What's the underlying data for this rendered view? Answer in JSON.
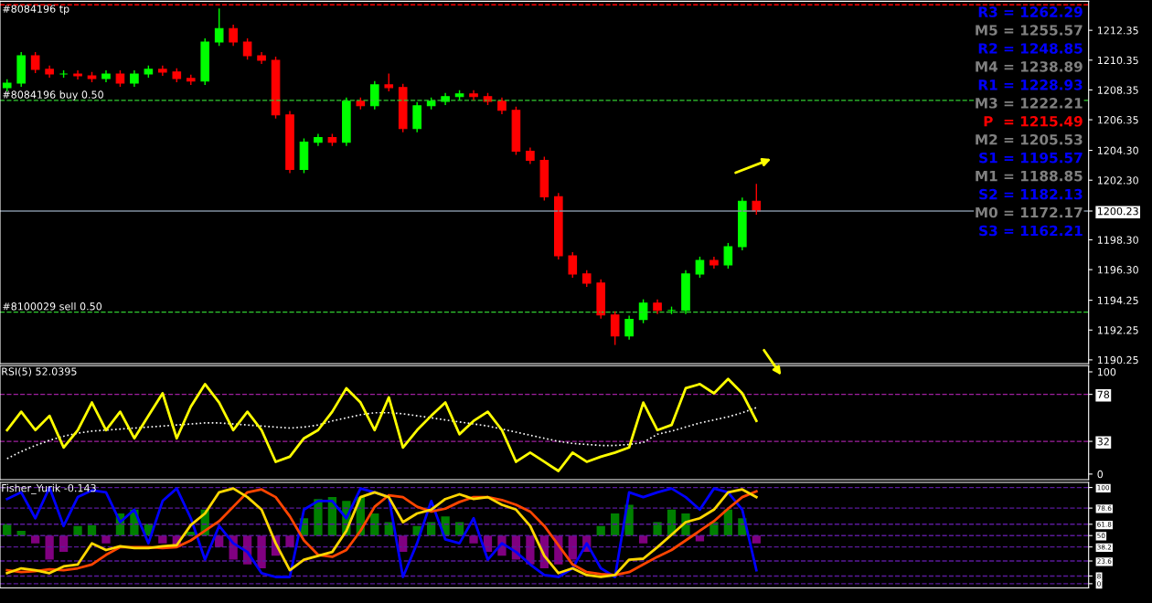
{
  "chart_data": [
    {
      "type": "candlestick",
      "tick_labels": "y",
      "grid": false,
      "categories": [
        null,
        null,
        null,
        null,
        null,
        null,
        null,
        null,
        null,
        null,
        null,
        null,
        null,
        null,
        null,
        null,
        null,
        null,
        null,
        null,
        null,
        null,
        null,
        null,
        null,
        null,
        null,
        null,
        null,
        null,
        null,
        null,
        null,
        null,
        null,
        null,
        null,
        null,
        null,
        null,
        null,
        null,
        null,
        null,
        null,
        null,
        null,
        null,
        null,
        null,
        null,
        null,
        null,
        null,
        null,
        null,
        null,
        null,
        null,
        null,
        null,
        null,
        null,
        null,
        null,
        null,
        null,
        null,
        null,
        null,
        null,
        null,
        null,
        null,
        null,
        null,
        null
      ],
      "ohlc": [
        [
          1208.5,
          1209.06,
          1208.25,
          1208.81
        ],
        [
          1208.81,
          1210.89,
          1208.56,
          1210.64
        ],
        [
          1210.64,
          1210.89,
          1209.48,
          1209.73
        ],
        [
          1209.73,
          1209.98,
          1209.17,
          1209.42
        ],
        [
          1209.42,
          1209.67,
          1209.17,
          1209.42
        ],
        [
          1209.42,
          1209.67,
          1209.05,
          1209.3
        ],
        [
          1209.3,
          1209.55,
          1208.87,
          1209.12
        ],
        [
          1209.12,
          1209.67,
          1208.87,
          1209.42
        ],
        [
          1209.42,
          1209.67,
          1208.56,
          1208.81
        ],
        [
          1208.81,
          1209.67,
          1208.56,
          1209.42
        ],
        [
          1209.42,
          1209.98,
          1209.17,
          1209.73
        ],
        [
          1209.73,
          1209.98,
          1209.3,
          1209.55
        ],
        [
          1209.55,
          1209.8,
          1208.87,
          1209.12
        ],
        [
          1209.12,
          1209.37,
          1208.69,
          1208.94
        ],
        [
          1208.94,
          1211.81,
          1208.69,
          1211.56
        ],
        [
          1211.56,
          1213.81,
          1211.31,
          1212.47
        ],
        [
          1212.47,
          1212.72,
          1211.31,
          1211.56
        ],
        [
          1211.56,
          1211.81,
          1210.39,
          1210.64
        ],
        [
          1210.64,
          1210.89,
          1210.09,
          1210.34
        ],
        [
          1210.34,
          1210.59,
          1206.43,
          1206.68
        ],
        [
          1206.68,
          1206.93,
          1202.77,
          1203.02
        ],
        [
          1203.02,
          1205.1,
          1202.77,
          1204.85
        ],
        [
          1204.85,
          1205.4,
          1204.6,
          1205.15
        ],
        [
          1205.15,
          1205.4,
          1204.6,
          1204.85
        ],
        [
          1204.85,
          1207.84,
          1204.6,
          1207.59
        ],
        [
          1207.59,
          1207.84,
          1207.04,
          1207.29
        ],
        [
          1207.29,
          1208.94,
          1207.04,
          1208.69
        ],
        [
          1208.69,
          1209.45,
          1208.26,
          1208.51
        ],
        [
          1208.51,
          1208.76,
          1205.51,
          1205.76
        ],
        [
          1205.76,
          1207.54,
          1205.51,
          1207.29
        ],
        [
          1207.29,
          1207.84,
          1207.04,
          1207.59
        ],
        [
          1207.59,
          1208.15,
          1207.34,
          1207.9
        ],
        [
          1207.9,
          1208.33,
          1207.65,
          1208.08
        ],
        [
          1208.08,
          1208.33,
          1207.65,
          1207.9
        ],
        [
          1207.9,
          1208.15,
          1207.34,
          1207.59
        ],
        [
          1207.59,
          1207.84,
          1206.73,
          1206.98
        ],
        [
          1206.98,
          1207.23,
          1203.99,
          1204.24
        ],
        [
          1204.24,
          1204.49,
          1203.38,
          1203.63
        ],
        [
          1203.63,
          1203.88,
          1200.94,
          1201.19
        ],
        [
          1201.19,
          1201.44,
          1196.98,
          1197.23
        ],
        [
          1197.23,
          1197.48,
          1195.76,
          1196.01
        ],
        [
          1196.01,
          1196.26,
          1195.15,
          1195.4
        ],
        [
          1195.4,
          1195.65,
          1193.01,
          1193.26
        ],
        [
          1193.26,
          1193.51,
          1191.25,
          1191.86
        ],
        [
          1191.86,
          1193.21,
          1191.61,
          1192.96
        ],
        [
          1192.96,
          1194.31,
          1192.71,
          1194.06
        ],
        [
          1194.06,
          1194.31,
          1193.32,
          1193.57
        ],
        [
          1193.57,
          1193.82,
          1193.32,
          1193.57
        ],
        [
          1193.57,
          1196.26,
          1193.32,
          1196.01
        ],
        [
          1196.01,
          1197.17,
          1195.76,
          1196.92
        ],
        [
          1196.92,
          1197.17,
          1196.37,
          1196.62
        ],
        [
          1196.62,
          1198.09,
          1196.37,
          1197.84
        ],
        [
          1197.84,
          1201.14,
          1197.59,
          1200.89
        ],
        [
          1200.89,
          1202.05,
          1199.98,
          1200.23
        ],
        null,
        null,
        null,
        null,
        null,
        null,
        null,
        null,
        null,
        null,
        null,
        null,
        null,
        null,
        null,
        null,
        null,
        null,
        null,
        null,
        null,
        null,
        null
      ],
      "colors": [
        "#00ff00",
        "#00ff00",
        "#ff0000",
        "#ff0000",
        "#00ff00",
        "#ff0000",
        "#ff0000",
        "#00ff00",
        "#ff0000",
        "#00ff00",
        "#00ff00",
        "#ff0000",
        "#ff0000",
        "#ff0000",
        "#00ff00",
        "#00ff00",
        "#ff0000",
        "#ff0000",
        "#ff0000",
        "#ff0000",
        "#ff0000",
        "#00ff00",
        "#00ff00",
        "#ff0000",
        "#00ff00",
        "#ff0000",
        "#00ff00",
        "#ff0000",
        "#ff0000",
        "#00ff00",
        "#00ff00",
        "#00ff00",
        "#00ff00",
        "#ff0000",
        "#ff0000",
        "#ff0000",
        "#ff0000",
        "#ff0000",
        "#ff0000",
        "#ff0000",
        "#ff0000",
        "#ff0000",
        "#ff0000",
        "#ff0000",
        "#00ff00",
        "#00ff00",
        "#ff0000",
        "#00ff00",
        "#00ff00",
        "#00ff00",
        "#ff0000",
        "#00ff00",
        "#00ff00",
        "#ff0000",
        null,
        null,
        null,
        null,
        null,
        null,
        null,
        null,
        null,
        null,
        null,
        null,
        null,
        null,
        null,
        null,
        null,
        null,
        null,
        null,
        null,
        null,
        null
      ],
      "ylim": [
        1190.0,
        1214.3
      ],
      "yticks": [
        {
          "value": 1212.35,
          "label": "1212.35"
        },
        {
          "value": 1210.35,
          "label": "1210.35"
        },
        {
          "value": 1208.35,
          "label": "1208.35"
        },
        {
          "value": 1206.35,
          "label": "1206.35"
        },
        {
          "value": 1204.3,
          "label": "1204.30"
        },
        {
          "value": 1202.3,
          "label": "1202.30"
        },
        {
          "value": 1200.23,
          "label": "1200.23"
        },
        {
          "value": 1198.3,
          "label": "1198.30"
        },
        {
          "value": 1196.3,
          "label": "1196.30"
        },
        {
          "value": 1194.25,
          "label": "1194.25"
        },
        {
          "value": 1192.25,
          "label": "1192.25"
        },
        {
          "value": 1190.25,
          "label": "1190.25"
        }
      ],
      "ref_lines": [
        {
          "axis": "y",
          "value": 1214.06,
          "label": "#8084196 tp",
          "color": "#ff0000",
          "line_style": "dashed"
        },
        {
          "axis": "y",
          "value": 1207.65,
          "label": "#8084196 buy 0.50",
          "color": "#32cd32",
          "line_style": "dashed"
        },
        {
          "axis": "y",
          "value": 1193.45,
          "label": "#8100029 sell 0.50",
          "color": "#32cd32",
          "line_style": "dashed"
        },
        {
          "axis": "y",
          "value": 1200.23,
          "color": "#8090a0",
          "line_style": "solid"
        }
      ],
      "annotations": [
        "R3 = 1262.29",
        "M5 = 1255.57",
        "R2 = 1248.85",
        "M4 = 1238.89",
        "R1 = 1228.93",
        "M3 = 1222.21",
        "P  = 1215.49",
        "M2 = 1205.53",
        "S1 = 1195.57",
        "M1 = 1188.85",
        "S2 = 1182.13",
        "M0 = 1172.17",
        "S3 = 1162.21"
      ]
    },
    {
      "type": "line",
      "tick_labels": "y",
      "grid": false,
      "categories": [
        null,
        null,
        null,
        null,
        null,
        null,
        null,
        null,
        null,
        null,
        null,
        null,
        null,
        null,
        null,
        null,
        null,
        null,
        null,
        null,
        null,
        null,
        null,
        null,
        null,
        null,
        null,
        null,
        null,
        null,
        null,
        null,
        null,
        null,
        null,
        null,
        null,
        null,
        null,
        null,
        null,
        null,
        null,
        null,
        null,
        null,
        null,
        null,
        null,
        null,
        null,
        null,
        null,
        null,
        null,
        null,
        null,
        null,
        null,
        null,
        null,
        null,
        null,
        null,
        null,
        null,
        null,
        null,
        null,
        null,
        null,
        null,
        null,
        null,
        null,
        null,
        null
      ],
      "ylim": [
        -5.5,
        106
      ],
      "yticks": [
        0,
        32,
        78,
        100
      ],
      "ref_lines": [
        {
          "axis": "y",
          "value": 78,
          "color": "#a020a0",
          "line_style": "dashed"
        },
        {
          "axis": "y",
          "value": 32,
          "color": "#a020a0",
          "line_style": "dashed"
        }
      ],
      "annotations": [
        "RSI(5) 52.0395"
      ],
      "series": [
        {
          "type": "line",
          "line_style": "dotted",
          "color": "#ffffff",
          "values": [
            15,
            22,
            28,
            33,
            37,
            40,
            42,
            43,
            44,
            45,
            46,
            47,
            48,
            49,
            50,
            50,
            49,
            48,
            47,
            46,
            45,
            46,
            48,
            52,
            55,
            58,
            60,
            60,
            59,
            57,
            55,
            53,
            51,
            49,
            47,
            44,
            41,
            38,
            35,
            32,
            30,
            29,
            28,
            28,
            29,
            31,
            39,
            42,
            46,
            50,
            53,
            56,
            60,
            65,
            null,
            null,
            null,
            null,
            null,
            null,
            null,
            null,
            null,
            null,
            null,
            null,
            null,
            null,
            null,
            null,
            null,
            null,
            null,
            null,
            null,
            null,
            null
          ]
        },
        {
          "type": "line",
          "line_style": "solid",
          "color": "#ffff00",
          "values": [
            43,
            61,
            43,
            57,
            26,
            43,
            70,
            43,
            61,
            35,
            57,
            79,
            35,
            66,
            88,
            70,
            43,
            61,
            43,
            12,
            17,
            35,
            43,
            61,
            84,
            70,
            43,
            75,
            26,
            43,
            57,
            70,
            39,
            52,
            61,
            43,
            12,
            21,
            12,
            3,
            21,
            12,
            17,
            21,
            26,
            70,
            43,
            48,
            84,
            88,
            79,
            93,
            79,
            52,
            null,
            null,
            null,
            null,
            null,
            null,
            null,
            null,
            null,
            null,
            null,
            null,
            null,
            null,
            null,
            null,
            null,
            null,
            null,
            null,
            null,
            null,
            null
          ]
        }
      ]
    },
    {
      "type": "line",
      "tick_labels": "y",
      "grid": false,
      "categories": [
        null,
        null,
        null,
        null,
        null,
        null,
        null,
        null,
        null,
        null,
        null,
        null,
        null,
        null,
        null,
        null,
        null,
        null,
        null,
        null,
        null,
        null,
        null,
        null,
        null,
        null,
        null,
        null,
        null,
        null,
        null,
        null,
        null,
        null,
        null,
        null,
        null,
        null,
        null,
        null,
        null,
        null,
        null,
        null,
        null,
        null,
        null,
        null,
        null,
        null,
        null,
        null,
        null,
        null,
        null,
        null,
        null,
        null,
        null,
        null,
        null,
        null,
        null,
        null,
        null,
        null,
        null,
        null,
        null,
        null,
        null,
        null,
        null,
        null,
        null,
        null,
        null
      ],
      "ylim": [
        -4.4,
        105.3
      ],
      "yticks": [
        0,
        8,
        23.6,
        38.2,
        50,
        61.8,
        78.6,
        100
      ],
      "ref_lines": [
        {
          "axis": "y",
          "value": 100,
          "color": "#5a1a9a",
          "line_style": "dashed"
        },
        {
          "axis": "y",
          "value": 78.6,
          "color": "#5a1a9a",
          "line_style": "dashed"
        },
        {
          "axis": "y",
          "value": 61.8,
          "color": "#5a1a9a",
          "line_style": "dashed"
        },
        {
          "axis": "y",
          "value": 50,
          "color": "#5a1a9a",
          "line_style": "dashed"
        },
        {
          "axis": "y",
          "value": 38.2,
          "color": "#5a1a9a",
          "line_style": "dashed"
        },
        {
          "axis": "y",
          "value": 23.6,
          "color": "#5a1a9a",
          "line_style": "dashed"
        },
        {
          "axis": "y",
          "value": 8,
          "color": "#5a1a9a",
          "line_style": "dashed"
        },
        {
          "axis": "y",
          "value": 0,
          "color": "#5a1a9a",
          "line_style": "dashed"
        }
      ],
      "annotations": [
        "Fisher_Yurik -0.143"
      ],
      "series": [
        {
          "type": "bar",
          "base": [
            50,
            50,
            50,
            50,
            50,
            50,
            50,
            50,
            50,
            50,
            50,
            50,
            50,
            50,
            50,
            50,
            50,
            50,
            50,
            50,
            50,
            50,
            50,
            50,
            50,
            50,
            50,
            50,
            50,
            50,
            50,
            50,
            50,
            50,
            50,
            50,
            50,
            50,
            50,
            50,
            50,
            50,
            50,
            50,
            50,
            50,
            50,
            50,
            50,
            50,
            50,
            50,
            50,
            50,
            null,
            null,
            null,
            null,
            null,
            null,
            null,
            null,
            null,
            null,
            null,
            null,
            null,
            null,
            null,
            null,
            null,
            null,
            null,
            null,
            null,
            null,
            null
          ],
          "values": [
            12,
            5,
            -8,
            -25,
            -17,
            10,
            11,
            -8,
            23,
            27,
            12,
            -8,
            -12,
            4,
            27,
            -12,
            -25,
            -30,
            -34,
            -21,
            -12,
            18,
            38,
            40,
            36,
            40,
            23,
            14,
            -17,
            10,
            14,
            20,
            14,
            -8,
            -17,
            -21,
            -25,
            -30,
            -34,
            -30,
            -25,
            -17,
            10,
            23,
            32,
            -8,
            14,
            27,
            23,
            -6,
            14,
            27,
            18,
            -8,
            null,
            null,
            null,
            null,
            null,
            null,
            null,
            null,
            null,
            null,
            null,
            null,
            null,
            null,
            null,
            null,
            null,
            null,
            null,
            null,
            null,
            null,
            null
          ],
          "colors": [
            "#008000",
            "#008000",
            "#800080",
            "#800080",
            "#800080",
            "#008000",
            "#008000",
            "#800080",
            "#008000",
            "#008000",
            "#008000",
            "#800080",
            "#800080",
            "#008000",
            "#008000",
            "#800080",
            "#800080",
            "#800080",
            "#800080",
            "#800080",
            "#800080",
            "#008000",
            "#008000",
            "#008000",
            "#008000",
            "#008000",
            "#008000",
            "#008000",
            "#800080",
            "#008000",
            "#008000",
            "#008000",
            "#008000",
            "#800080",
            "#800080",
            "#800080",
            "#800080",
            "#800080",
            "#800080",
            "#800080",
            "#800080",
            "#800080",
            "#008000",
            "#008000",
            "#008000",
            "#800080",
            "#008000",
            "#008000",
            "#008000",
            "#800080",
            "#008000",
            "#008000",
            "#008000",
            "#800080",
            null,
            null,
            null,
            null,
            null,
            null,
            null,
            null,
            null,
            null,
            null,
            null,
            null,
            null,
            null,
            null,
            null,
            null,
            null,
            null,
            null,
            null,
            null
          ]
        },
        {
          "type": "line",
          "line_style": "solid",
          "color": "#0000ff",
          "values": [
            88,
            95,
            68,
            100,
            60,
            90,
            97,
            95,
            64,
            77,
            42,
            86,
            99,
            68,
            25,
            60,
            42,
            33,
            11,
            7,
            7,
            77,
            86,
            86,
            68,
            99,
            95,
            90,
            7,
            42,
            86,
            46,
            42,
            68,
            25,
            42,
            33,
            20,
            9,
            7,
            16,
            42,
            16,
            7,
            95,
            90,
            95,
            99,
            90,
            77,
            99,
            95,
            77,
            14,
            null,
            null,
            null,
            null,
            null,
            null,
            null,
            null,
            null,
            null,
            null,
            null,
            null,
            null,
            null,
            null,
            null,
            null,
            null,
            null,
            null,
            null,
            null
          ]
        },
        {
          "type": "line",
          "line_style": "solid",
          "color": "#ff4500",
          "values": [
            14,
            12,
            13,
            15,
            14,
            16,
            20,
            30,
            38,
            38,
            38,
            37,
            38,
            45,
            55,
            65,
            80,
            95,
            98,
            90,
            70,
            45,
            30,
            28,
            35,
            55,
            80,
            92,
            90,
            80,
            75,
            78,
            85,
            90,
            90,
            87,
            82,
            75,
            60,
            40,
            20,
            12,
            10,
            9,
            12,
            20,
            28,
            35,
            45,
            55,
            65,
            78,
            90,
            96,
            null,
            null,
            null,
            null,
            null,
            null,
            null,
            null,
            null,
            null,
            null,
            null,
            null,
            null,
            null,
            null,
            null,
            null,
            null,
            null,
            null,
            null,
            null
          ]
        },
        {
          "type": "line",
          "line_style": "solid",
          "color": "#ffd700",
          "values": [
            11,
            16,
            14,
            11,
            18,
            20,
            42,
            35,
            39,
            37,
            37,
            39,
            40,
            61,
            73,
            95,
            99,
            90,
            77,
            42,
            14,
            25,
            29,
            33,
            55,
            90,
            95,
            90,
            64,
            73,
            77,
            88,
            93,
            88,
            90,
            82,
            77,
            60,
            29,
            11,
            16,
            9,
            7,
            9,
            25,
            26,
            38,
            51,
            64,
            68,
            77,
            95,
            98,
            90,
            null,
            null,
            null,
            null,
            null,
            null,
            null,
            null,
            null,
            null,
            null,
            null,
            null,
            null,
            null,
            null,
            null,
            null,
            null,
            null,
            null,
            null,
            null
          ]
        }
      ]
    }
  ]
}
